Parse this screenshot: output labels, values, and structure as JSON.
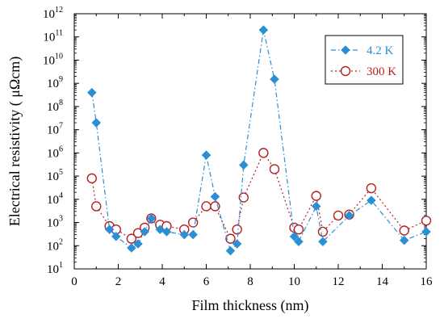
{
  "chart_data": {
    "type": "line",
    "xlabel": "Film thickness (nm)",
    "ylabel": "Electrical resistivity ( μΩcm)",
    "xlim": [
      0,
      16
    ],
    "ylim_log10": [
      1,
      12
    ],
    "y_scale": "log",
    "x_ticks": [
      "0",
      "2",
      "4",
      "6",
      "8",
      "10",
      "12",
      "14",
      "16"
    ],
    "y_tick_base": "10",
    "y_tick_exponents": [
      "1",
      "2",
      "3",
      "4",
      "5",
      "6",
      "7",
      "8",
      "9",
      "10",
      "11",
      "12"
    ],
    "grid": false,
    "legend_position": "top-right",
    "series": [
      {
        "name": "4.2 K",
        "color": "#2b8fd6",
        "marker": "diamond-filled",
        "line": "dash-dot",
        "x": [
          0.8,
          1.0,
          1.6,
          1.9,
          2.6,
          2.9,
          3.2,
          3.5,
          3.9,
          4.2,
          5.0,
          5.4,
          6.0,
          6.4,
          7.1,
          7.4,
          7.7,
          8.6,
          9.1,
          10.0,
          10.2,
          11.0,
          11.3,
          12.5,
          13.5,
          15.0,
          16.0
        ],
        "y": [
          400000000.0,
          20000000.0,
          500,
          250,
          80,
          120,
          400,
          1500,
          500,
          400,
          300,
          300,
          800000.0,
          13000.0,
          60,
          120,
          300000.0,
          200000000000.0,
          1500000000.0,
          250,
          150,
          5000,
          150,
          2000,
          9000,
          170,
          400
        ]
      },
      {
        "name": "300 K",
        "color": "#b22222",
        "marker": "circle-open",
        "line": "dotted",
        "x": [
          0.8,
          1.0,
          1.6,
          1.9,
          2.6,
          2.9,
          3.2,
          3.5,
          3.9,
          4.2,
          5.0,
          5.4,
          6.0,
          6.4,
          7.1,
          7.4,
          7.7,
          8.6,
          9.1,
          10.0,
          10.2,
          11.0,
          11.3,
          12.0,
          12.5,
          13.5,
          15.0,
          16.0
        ],
        "y": [
          80000.0,
          5000,
          700,
          500,
          200,
          350,
          600,
          1500,
          800,
          700,
          500,
          1000,
          5000,
          5000,
          200,
          500,
          12000.0,
          1000000.0,
          200000.0,
          600,
          500,
          14000.0,
          400,
          2000,
          2200,
          30000.0,
          450,
          1200
        ]
      }
    ]
  }
}
